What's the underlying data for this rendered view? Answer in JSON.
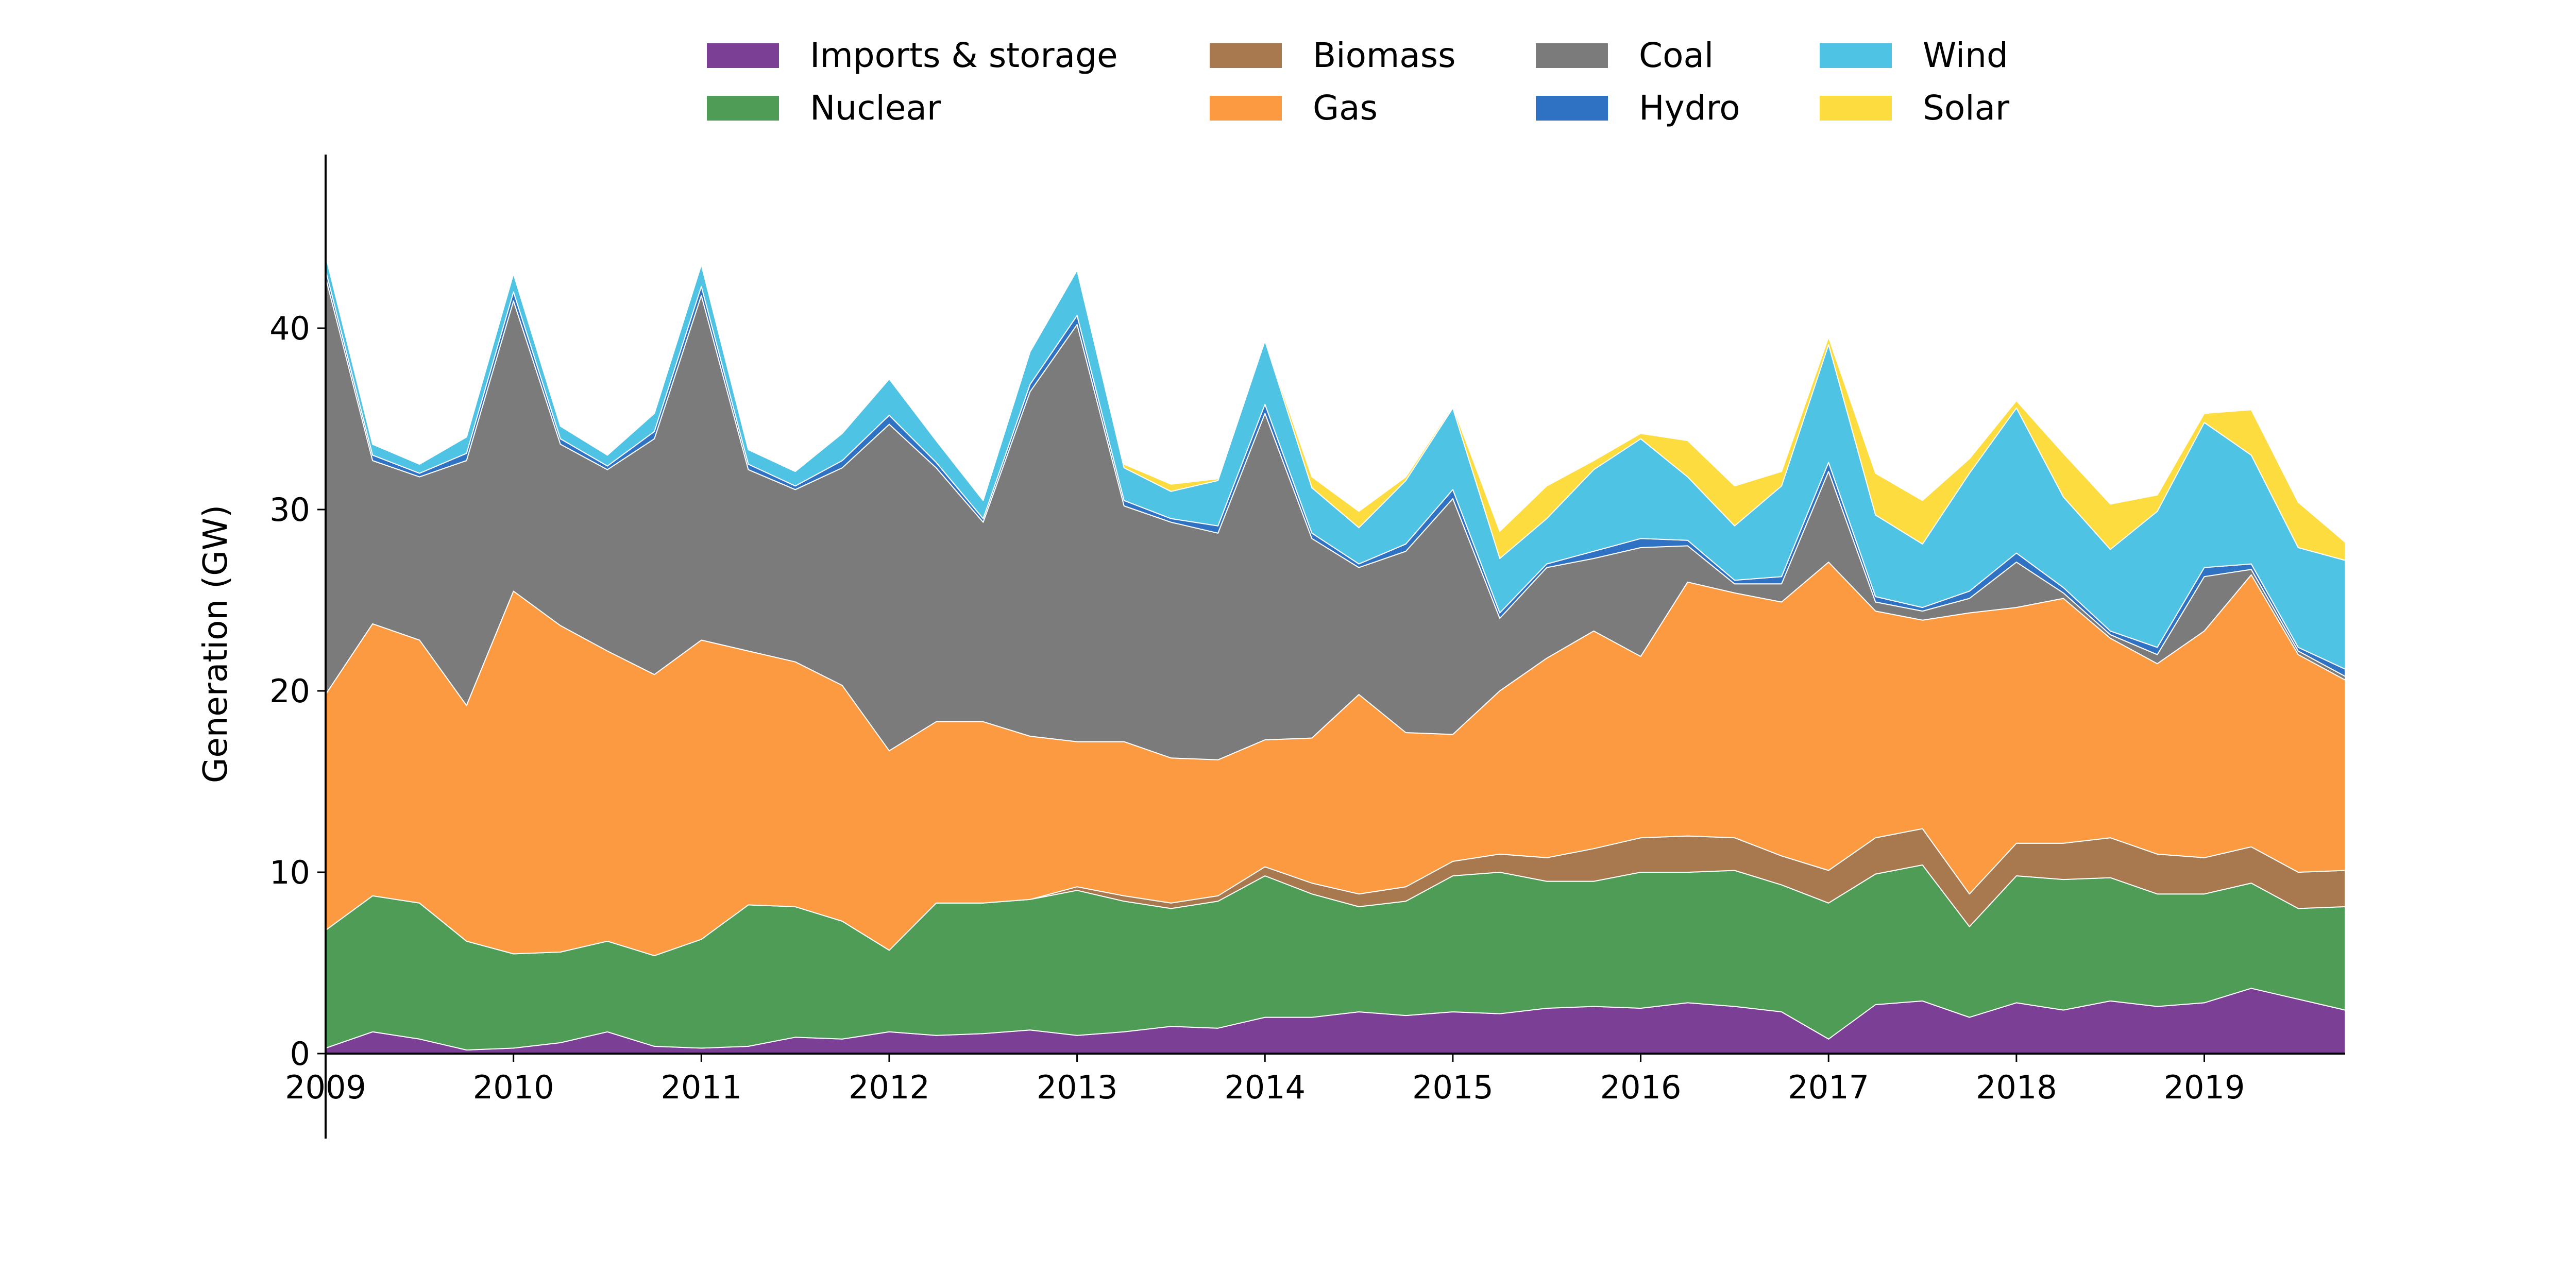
{
  "chart_data": {
    "type": "area",
    "stacked": true,
    "title": "",
    "xlabel": "",
    "ylabel": "Generation (GW)",
    "xlim": [
      2009,
      2019.75
    ],
    "ylim": [
      0,
      50
    ],
    "x_ticks": [
      2009,
      2010,
      2011,
      2012,
      2013,
      2014,
      2015,
      2016,
      2017,
      2018,
      2019
    ],
    "x_tick_labels": [
      "2009",
      "2010",
      "2011",
      "2012",
      "2013",
      "2014",
      "2015",
      "2016",
      "2017",
      "2018",
      "2019"
    ],
    "y_ticks": [
      0,
      10,
      20,
      30,
      40
    ],
    "y_tick_labels": [
      "0",
      "10",
      "20",
      "30",
      "40"
    ],
    "legend_position": "top-center",
    "x": [
      2009.0,
      2009.25,
      2009.5,
      2009.75,
      2010.0,
      2010.25,
      2010.5,
      2010.75,
      2011.0,
      2011.25,
      2011.5,
      2011.75,
      2012.0,
      2012.25,
      2012.5,
      2012.75,
      2013.0,
      2013.25,
      2013.5,
      2013.75,
      2014.0,
      2014.25,
      2014.5,
      2014.75,
      2015.0,
      2015.25,
      2015.5,
      2015.75,
      2016.0,
      2016.25,
      2016.5,
      2016.75,
      2017.0,
      2017.25,
      2017.5,
      2017.75,
      2018.0,
      2018.25,
      2018.5,
      2018.75,
      2019.0,
      2019.25,
      2019.5,
      2019.75
    ],
    "series": [
      {
        "name": "Imports & storage",
        "color": "#7b3f96",
        "values": [
          0.3,
          1.2,
          0.8,
          0.2,
          0.3,
          0.6,
          1.2,
          0.4,
          0.3,
          0.4,
          0.9,
          0.8,
          1.2,
          1.0,
          1.1,
          1.3,
          1.0,
          1.2,
          1.5,
          1.4,
          2.0,
          2.0,
          2.3,
          2.1,
          2.3,
          2.2,
          2.5,
          2.6,
          2.5,
          2.8,
          2.6,
          2.3,
          0.8,
          2.7,
          2.9,
          2.0,
          2.8,
          2.4,
          2.9,
          2.6,
          2.8,
          3.6,
          3.0,
          2.4
        ]
      },
      {
        "name": "Nuclear",
        "color": "#4e9c55",
        "values": [
          6.5,
          7.5,
          7.5,
          6.0,
          5.2,
          5.0,
          5.0,
          5.0,
          6.0,
          7.8,
          7.2,
          6.5,
          4.5,
          7.3,
          7.2,
          7.2,
          8.0,
          7.2,
          6.5,
          7.0,
          7.8,
          6.8,
          5.8,
          6.3,
          7.5,
          7.8,
          7.0,
          6.9,
          7.5,
          7.2,
          7.5,
          7.0,
          7.5,
          7.2,
          7.5,
          5.0,
          7.0,
          7.2,
          6.8,
          6.2,
          6.0,
          5.8,
          5.0,
          5.7
        ]
      },
      {
        "name": "Biomass",
        "color": "#a8784e",
        "values": [
          0.0,
          0.0,
          0.0,
          0.0,
          0.0,
          0.0,
          0.0,
          0.0,
          0.0,
          0.0,
          0.0,
          0.0,
          0.0,
          0.0,
          0.0,
          0.0,
          0.2,
          0.3,
          0.3,
          0.3,
          0.5,
          0.6,
          0.7,
          0.8,
          0.8,
          1.0,
          1.3,
          1.8,
          1.9,
          2.0,
          1.8,
          1.6,
          1.8,
          2.0,
          2.0,
          1.8,
          1.8,
          2.0,
          2.2,
          2.2,
          2.0,
          2.0,
          2.0,
          2.0
        ]
      },
      {
        "name": "Gas",
        "color": "#fb9a40",
        "values": [
          13.0,
          15.0,
          14.5,
          13.0,
          20.0,
          18.0,
          16.0,
          15.5,
          16.5,
          14.0,
          13.5,
          13.0,
          11.0,
          10.0,
          10.0,
          9.0,
          8.0,
          8.5,
          8.0,
          7.5,
          7.0,
          8.0,
          11.0,
          8.5,
          7.0,
          9.0,
          11.0,
          12.0,
          10.0,
          14.0,
          13.5,
          14.0,
          17.0,
          12.5,
          11.5,
          15.5,
          13.0,
          13.5,
          11.0,
          10.5,
          12.5,
          15.0,
          12.0,
          10.5
        ]
      },
      {
        "name": "Coal",
        "color": "#7b7b7b",
        "values": [
          23.0,
          9.0,
          9.0,
          13.5,
          16.0,
          10.0,
          10.0,
          13.0,
          19.0,
          10.0,
          9.5,
          12.0,
          18.0,
          14.0,
          11.0,
          19.0,
          23.0,
          13.0,
          13.0,
          12.5,
          18.0,
          11.0,
          7.0,
          10.0,
          13.0,
          4.0,
          5.0,
          4.0,
          6.0,
          2.0,
          0.5,
          1.0,
          5.0,
          0.5,
          0.5,
          0.8,
          2.5,
          0.3,
          0.2,
          0.5,
          3.0,
          0.3,
          0.2,
          0.2
        ]
      },
      {
        "name": "Hydro",
        "color": "#2f72c4",
        "values": [
          0.4,
          0.3,
          0.2,
          0.4,
          0.5,
          0.3,
          0.2,
          0.4,
          0.5,
          0.3,
          0.2,
          0.4,
          0.5,
          0.3,
          0.2,
          0.4,
          0.5,
          0.3,
          0.2,
          0.4,
          0.5,
          0.3,
          0.2,
          0.4,
          0.5,
          0.3,
          0.2,
          0.4,
          0.5,
          0.3,
          0.2,
          0.4,
          0.5,
          0.3,
          0.2,
          0.4,
          0.5,
          0.3,
          0.2,
          0.4,
          0.5,
          0.3,
          0.2,
          0.4
        ]
      },
      {
        "name": "Wind",
        "color": "#4fc3e3",
        "values": [
          0.8,
          0.6,
          0.5,
          0.9,
          1.0,
          0.7,
          0.6,
          1.0,
          1.2,
          0.8,
          0.8,
          1.5,
          2.0,
          1.2,
          1.0,
          1.8,
          2.5,
          1.8,
          1.5,
          2.5,
          3.5,
          2.5,
          2.0,
          3.5,
          4.5,
          3.0,
          2.5,
          4.5,
          5.5,
          3.5,
          3.0,
          5.0,
          6.5,
          4.5,
          3.5,
          6.5,
          8.0,
          5.0,
          4.5,
          7.5,
          8.0,
          6.0,
          5.5,
          6.0
        ]
      },
      {
        "name": "Solar",
        "color": "#fddc3f",
        "values": [
          0.0,
          0.0,
          0.0,
          0.0,
          0.0,
          0.0,
          0.0,
          0.0,
          0.0,
          0.0,
          0.0,
          0.0,
          0.0,
          0.0,
          0.1,
          0.0,
          0.0,
          0.2,
          0.4,
          0.1,
          0.0,
          0.6,
          0.9,
          0.2,
          0.1,
          1.5,
          1.8,
          0.5,
          0.3,
          2.0,
          2.2,
          0.8,
          0.4,
          2.3,
          2.4,
          0.8,
          0.4,
          2.4,
          2.5,
          0.9,
          0.5,
          2.5,
          2.5,
          1.0
        ]
      }
    ],
    "legend": [
      [
        "Imports & storage",
        "Biomass",
        "Coal",
        "Wind"
      ],
      [
        "Nuclear",
        "Gas",
        "Hydro",
        "Solar"
      ]
    ]
  }
}
